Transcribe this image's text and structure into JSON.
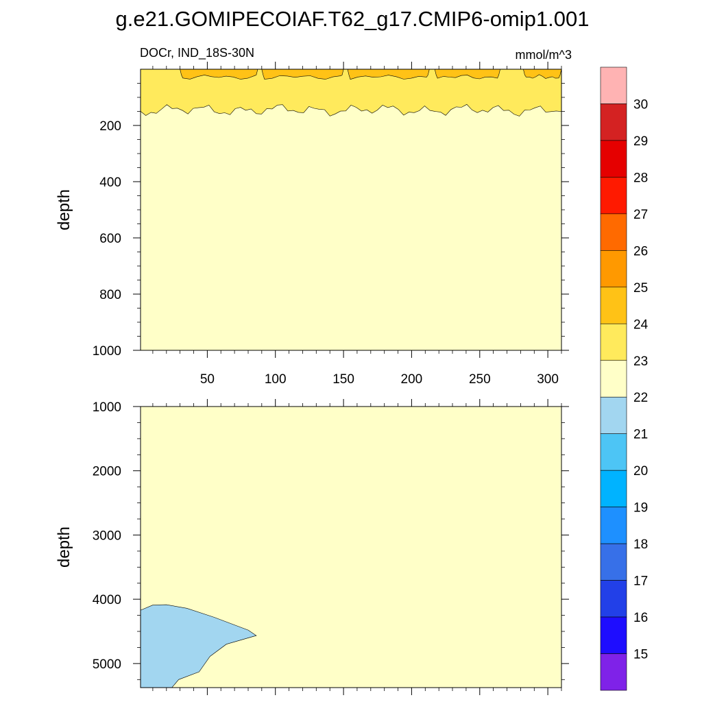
{
  "title": "g.e21.GOMIPECOIAF.T62_g17.CMIP6-omip1.001",
  "chart_data": [
    {
      "type": "heatmap",
      "name": "upper-panel",
      "variable_label": "DOCr, IND_18S-30N",
      "units_label": "mmol/m^3",
      "ylabel": "depth",
      "xlim": [
        1,
        310
      ],
      "ylim": [
        0,
        1000
      ],
      "x_ticks": [
        50,
        100,
        150,
        200,
        250,
        300
      ],
      "x_tick_labels": [
        "50",
        "100",
        "150",
        "200",
        "250",
        "300"
      ],
      "y_ticks": [
        200,
        400,
        600,
        800,
        1000
      ],
      "y_tick_labels": [
        "200",
        "400",
        "600",
        "800",
        "1000"
      ],
      "regions": [
        {
          "range": "23-24",
          "color": "#FFEA5C",
          "depth_boundary": 145,
          "description": "upper layer from 0 to ~145 m"
        },
        {
          "range": "24-25",
          "color": "#FFC216",
          "patches": [
            [
              30,
              87
            ],
            [
              90,
              150
            ],
            [
              153,
              213
            ],
            [
              217,
              265
            ],
            [
              282,
              310
            ]
          ],
          "max_depth": 35
        },
        {
          "range": "22-23",
          "color": "#FFFFC8",
          "description": "below ~145 m"
        }
      ]
    },
    {
      "type": "heatmap",
      "name": "lower-panel",
      "ylabel": "depth",
      "xlim": [
        1,
        310
      ],
      "ylim": [
        1000,
        5375
      ],
      "y_ticks": [
        1000,
        2000,
        3000,
        4000,
        5000
      ],
      "y_tick_labels": [
        "1000",
        "2000",
        "3000",
        "4000",
        "5000"
      ],
      "regions": [
        {
          "range": "22-23",
          "color": "#FFFFC8",
          "description": "background"
        },
        {
          "range": "21-22",
          "color": "#A2D6F0",
          "description": "bottom-left blob",
          "outline": [
            [
              1,
              4170
            ],
            [
              10,
              4090
            ],
            [
              20,
              4085
            ],
            [
              35,
              4140
            ],
            [
              55,
              4280
            ],
            [
              70,
              4400
            ],
            [
              80,
              4480
            ],
            [
              86,
              4565
            ],
            [
              64,
              4700
            ],
            [
              52,
              4890
            ],
            [
              44,
              5130
            ],
            [
              29,
              5250
            ],
            [
              24,
              5375
            ],
            [
              1,
              5375
            ]
          ]
        }
      ]
    },
    {
      "type": "colorbar",
      "name": "colorbar",
      "labels": [
        "15",
        "16",
        "17",
        "18",
        "19",
        "20",
        "21",
        "22",
        "23",
        "24",
        "25",
        "26",
        "27",
        "28",
        "29",
        "30"
      ],
      "colors_top_to_bottom": [
        "#FFB3B3",
        "#D42222",
        "#E50000",
        "#FF1A00",
        "#FF6A00",
        "#FF9900",
        "#FFC216",
        "#FFEA5C",
        "#FFFFC8",
        "#A2D6F0",
        "#4DC5F5",
        "#00B3FF",
        "#1E90FF",
        "#3770E8",
        "#2240E8",
        "#1E0DFF",
        "#7F22E8"
      ]
    }
  ]
}
